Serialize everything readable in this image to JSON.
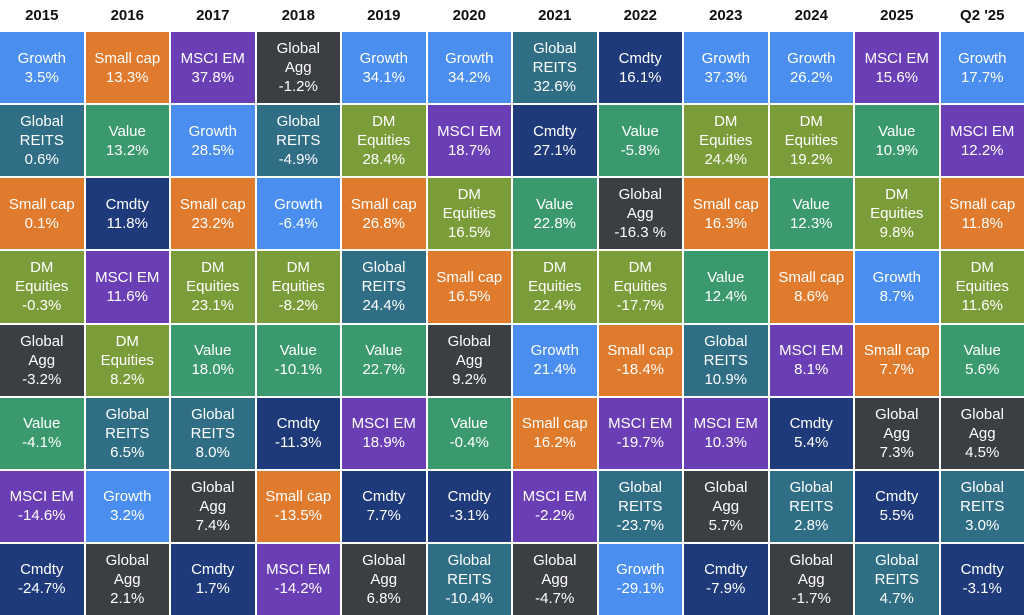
{
  "colors": {
    "Growth": "#4a8ef0",
    "Small cap": "#e07a2c",
    "MSCI EM": "#6a3fb5",
    "Global Agg": "#3b3e43",
    "Global REITS": "#2f6e85",
    "Value": "#3a9a6d",
    "DM Equities": "#7a9d39",
    "Cmdty": "#1f3a7a"
  },
  "columns": [
    {
      "header": "2015",
      "cells": [
        [
          "Growth",
          "3.5%"
        ],
        [
          "Global REITS",
          "0.6%"
        ],
        [
          "Small cap",
          "0.1%"
        ],
        [
          "DM Equities",
          "-0.3%"
        ],
        [
          "Global Agg",
          "-3.2%"
        ],
        [
          "Value",
          "-4.1%"
        ],
        [
          "MSCI EM",
          "-14.6%"
        ],
        [
          "Cmdty",
          "-24.7%"
        ]
      ]
    },
    {
      "header": "2016",
      "cells": [
        [
          "Small cap",
          "13.3%"
        ],
        [
          "Value",
          "13.2%"
        ],
        [
          "Cmdty",
          "11.8%"
        ],
        [
          "MSCI EM",
          "11.6%"
        ],
        [
          "DM Equities",
          "8.2%"
        ],
        [
          "Global REITS",
          "6.5%"
        ],
        [
          "Growth",
          "3.2%"
        ],
        [
          "Global Agg",
          "2.1%"
        ]
      ]
    },
    {
      "header": "2017",
      "cells": [
        [
          "MSCI EM",
          "37.8%"
        ],
        [
          "Growth",
          "28.5%"
        ],
        [
          "Small cap",
          "23.2%"
        ],
        [
          "DM Equities",
          "23.1%"
        ],
        [
          "Value",
          "18.0%"
        ],
        [
          "Global REITS",
          "8.0%"
        ],
        [
          "Global Agg",
          "7.4%"
        ],
        [
          "Cmdty",
          "1.7%"
        ]
      ]
    },
    {
      "header": "2018",
      "cells": [
        [
          "Global Agg",
          "-1.2%"
        ],
        [
          "Global REITS",
          "-4.9%"
        ],
        [
          "Growth",
          "-6.4%"
        ],
        [
          "DM Equities",
          "-8.2%"
        ],
        [
          "Value",
          "-10.1%"
        ],
        [
          "Cmdty",
          "-11.3%"
        ],
        [
          "Small cap",
          "-13.5%"
        ],
        [
          "MSCI EM",
          "-14.2%"
        ]
      ]
    },
    {
      "header": "2019",
      "cells": [
        [
          "Growth",
          "34.1%"
        ],
        [
          "DM Equities",
          "28.4%"
        ],
        [
          "Small cap",
          "26.8%"
        ],
        [
          "Global REITS",
          "24.4%"
        ],
        [
          "Value",
          "22.7%"
        ],
        [
          "MSCI EM",
          "18.9%"
        ],
        [
          "Cmdty",
          "7.7%"
        ],
        [
          "Global Agg",
          "6.8%"
        ]
      ]
    },
    {
      "header": "2020",
      "cells": [
        [
          "Growth",
          "34.2%"
        ],
        [
          "MSCI EM",
          "18.7%"
        ],
        [
          "DM Equities",
          "16.5%"
        ],
        [
          "Small cap",
          "16.5%"
        ],
        [
          "Global Agg",
          "9.2%"
        ],
        [
          "Value",
          "-0.4%"
        ],
        [
          "Cmdty",
          "-3.1%"
        ],
        [
          "Global REITS",
          "-10.4%"
        ]
      ]
    },
    {
      "header": "2021",
      "cells": [
        [
          "Global REITS",
          "32.6%"
        ],
        [
          "Cmdty",
          "27.1%"
        ],
        [
          "Value",
          "22.8%"
        ],
        [
          "DM Equities",
          "22.4%"
        ],
        [
          "Growth",
          "21.4%"
        ],
        [
          "Small cap",
          "16.2%"
        ],
        [
          "MSCI EM",
          "-2.2%"
        ],
        [
          "Global Agg",
          "-4.7%"
        ]
      ]
    },
    {
      "header": "2022",
      "cells": [
        [
          "Cmdty",
          "16.1%"
        ],
        [
          "Value",
          "-5.8%"
        ],
        [
          "Global Agg",
          "-16.3 %"
        ],
        [
          "DM Equities",
          "-17.7%"
        ],
        [
          "Small cap",
          "-18.4%"
        ],
        [
          "MSCI EM",
          "-19.7%"
        ],
        [
          "Global REITS",
          "-23.7%"
        ],
        [
          "Growth",
          "-29.1%"
        ]
      ]
    },
    {
      "header": "2023",
      "cells": [
        [
          "Growth",
          "37.3%"
        ],
        [
          "DM Equities",
          "24.4%"
        ],
        [
          "Small cap",
          "16.3%"
        ],
        [
          "Value",
          "12.4%"
        ],
        [
          "Global REITS",
          "10.9%"
        ],
        [
          "MSCI EM",
          "10.3%"
        ],
        [
          "Global Agg",
          "5.7%"
        ],
        [
          "Cmdty",
          "-7.9%"
        ]
      ]
    },
    {
      "header": "2024",
      "cells": [
        [
          "Growth",
          "26.2%"
        ],
        [
          "DM Equities",
          "19.2%"
        ],
        [
          "Value",
          "12.3%"
        ],
        [
          "Small cap",
          "8.6%"
        ],
        [
          "MSCI EM",
          "8.1%"
        ],
        [
          "Cmdty",
          "5.4%"
        ],
        [
          "Global REITS",
          "2.8%"
        ],
        [
          "Global Agg",
          "-1.7%"
        ]
      ]
    },
    {
      "header": "2025",
      "cells": [
        [
          "MSCI EM",
          "15.6%"
        ],
        [
          "Value",
          "10.9%"
        ],
        [
          "DM Equities",
          "9.8%"
        ],
        [
          "Growth",
          "8.7%"
        ],
        [
          "Small cap",
          "7.7%"
        ],
        [
          "Global Agg",
          "7.3%"
        ],
        [
          "Cmdty",
          "5.5%"
        ],
        [
          "Global REITS",
          "4.7%"
        ]
      ]
    },
    {
      "header": "Q2 '25",
      "cells": [
        [
          "Growth",
          "17.7%"
        ],
        [
          "MSCI EM",
          "12.2%"
        ],
        [
          "Small cap",
          "11.8%"
        ],
        [
          "DM Equities",
          "11.6%"
        ],
        [
          "Value",
          "5.6%"
        ],
        [
          "Global Agg",
          "4.5%"
        ],
        [
          "Global REITS",
          "3.0%"
        ],
        [
          "Cmdty",
          "-3.1%"
        ]
      ]
    }
  ]
}
